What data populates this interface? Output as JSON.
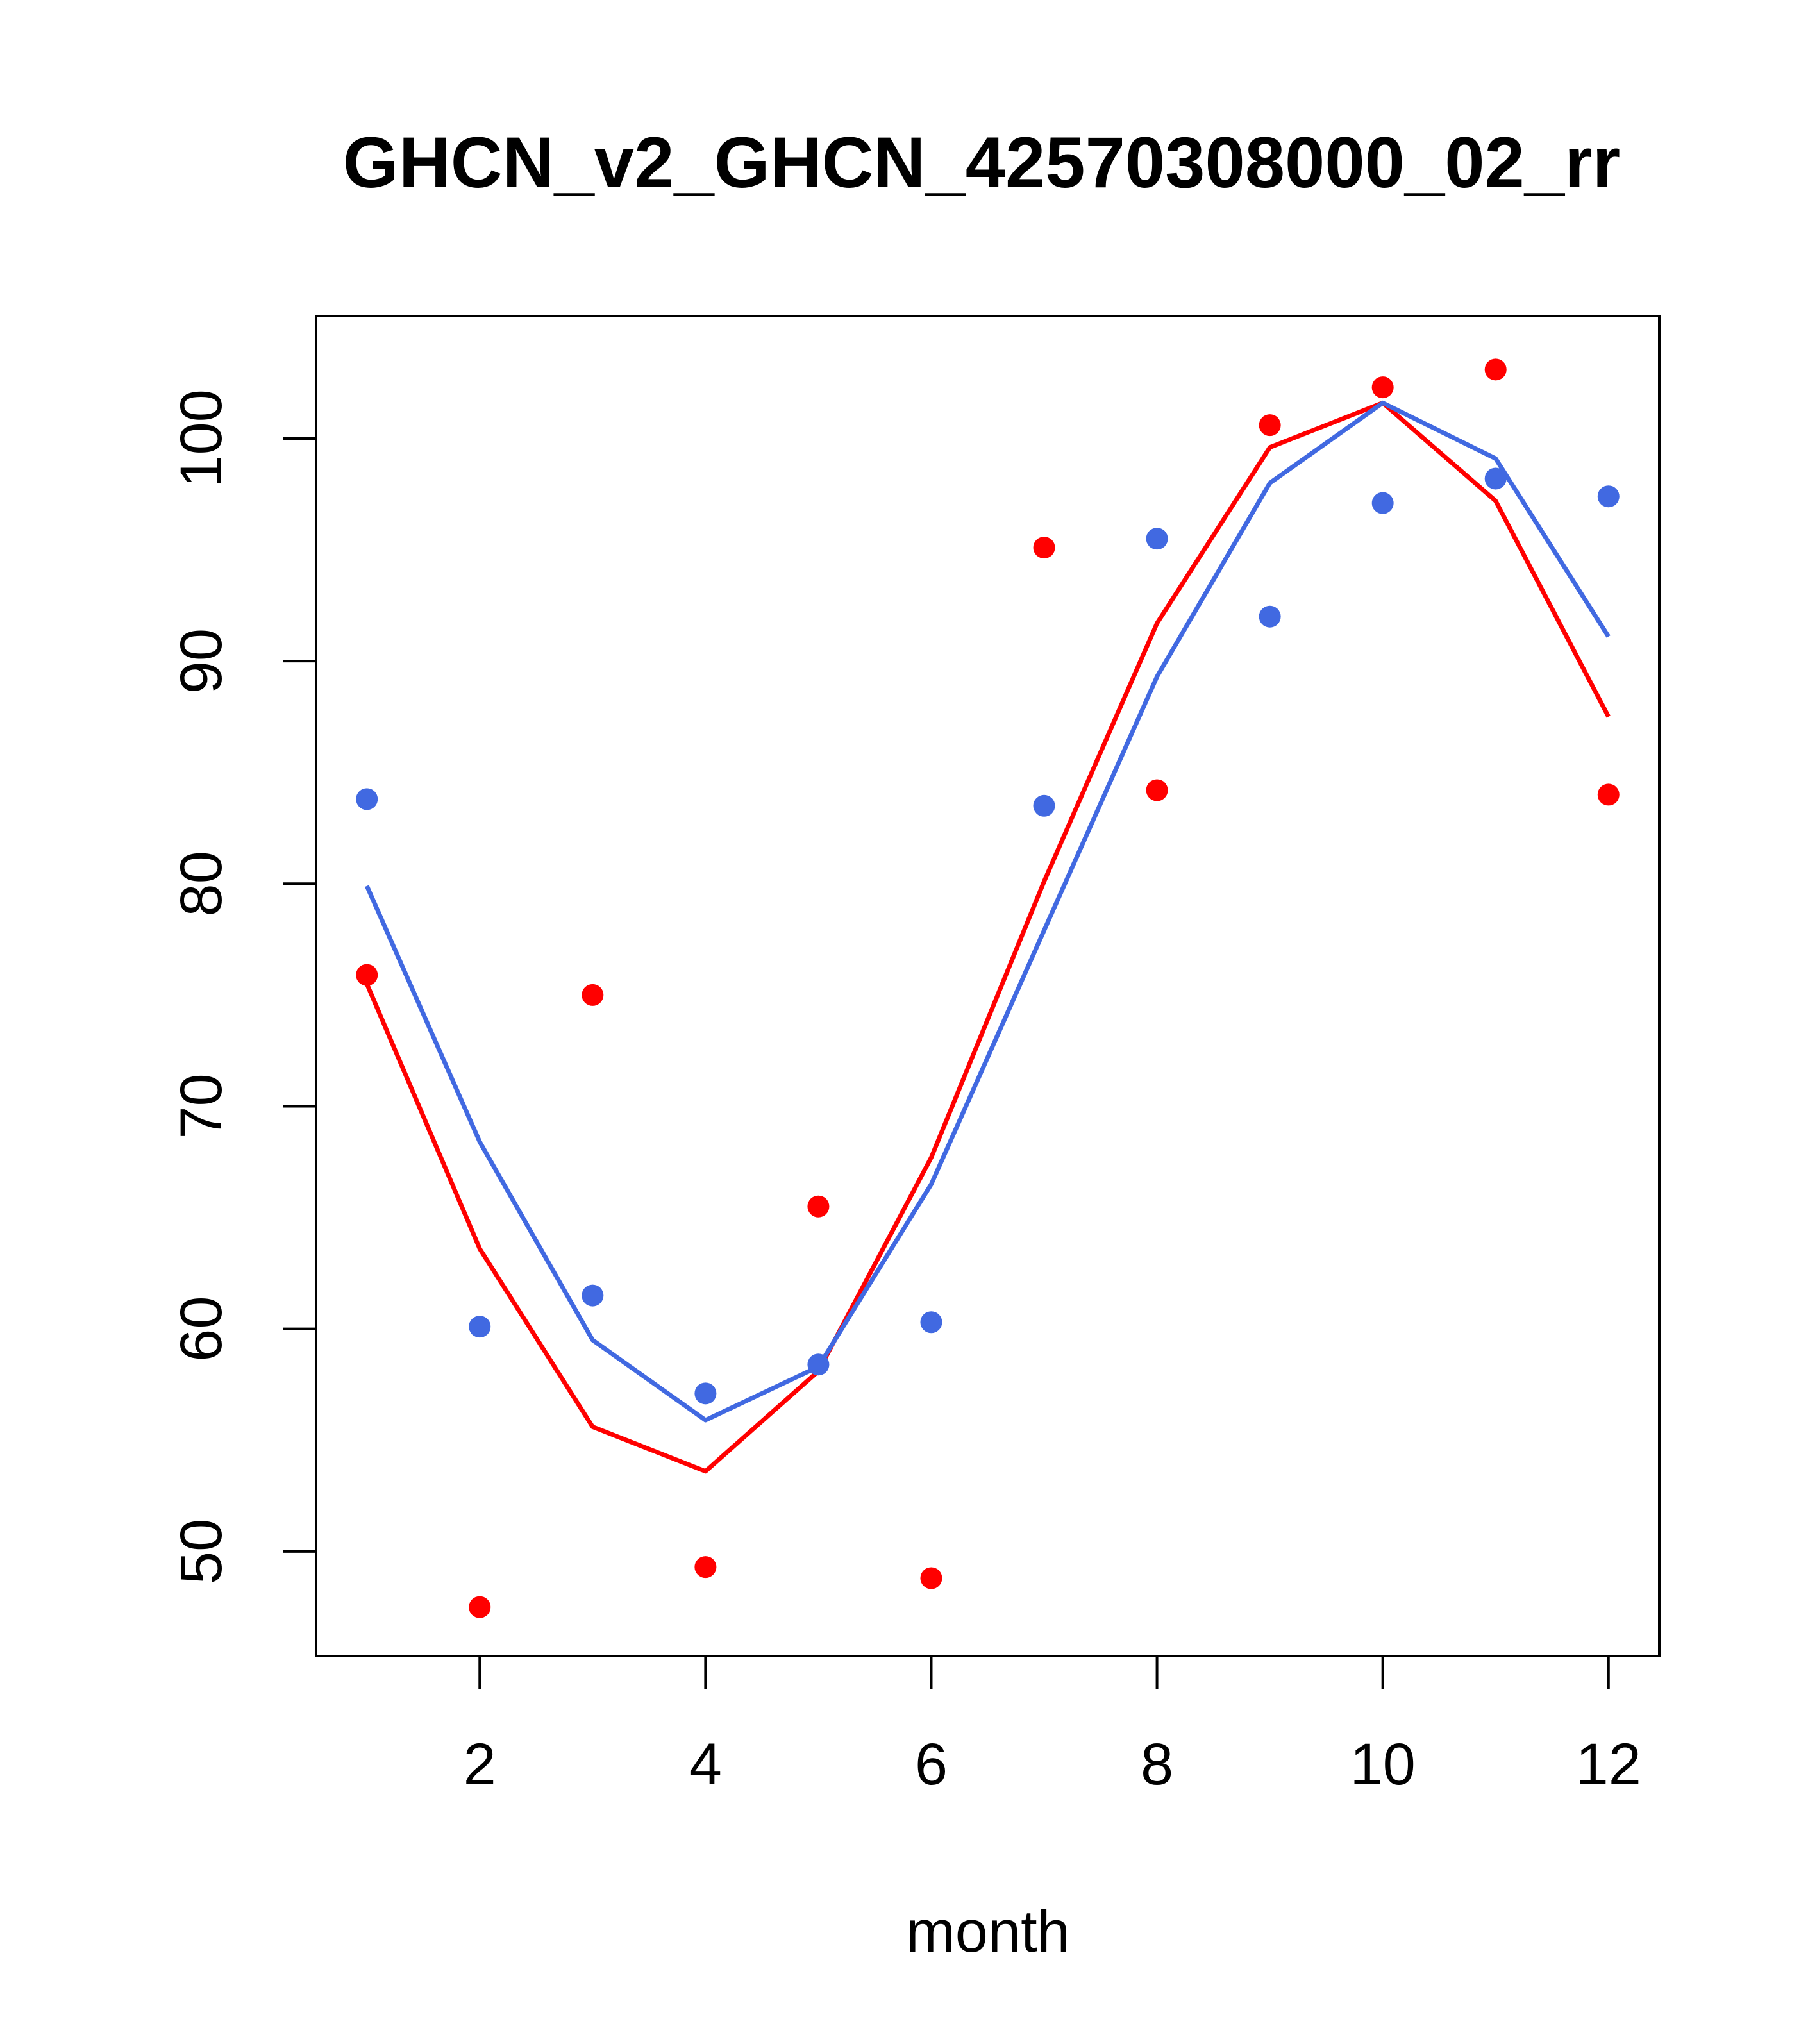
{
  "chart_data": {
    "type": "line",
    "title": "GHCN_v2_GHCN_42570308000_02_rr",
    "xlabel": "month",
    "ylabel": "",
    "xlim": [
      0.55,
      12.45
    ],
    "ylim": [
      45.3,
      105.5
    ],
    "x_ticks": [
      2,
      4,
      6,
      8,
      10,
      12
    ],
    "y_ticks": [
      50,
      60,
      70,
      80,
      90,
      100
    ],
    "grid": false,
    "series": [
      {
        "kind": "points",
        "color": "#ff0000",
        "x": [
          1,
          2,
          3,
          4,
          5,
          6,
          7,
          8,
          9,
          10,
          11,
          12
        ],
        "y": [
          75.9,
          47.5,
          75.0,
          49.3,
          65.5,
          48.8,
          95.1,
          84.2,
          100.6,
          102.3,
          103.1,
          84.0
        ]
      },
      {
        "kind": "points",
        "color": "#4169e1",
        "x": [
          1,
          2,
          3,
          4,
          5,
          6,
          7,
          8,
          9,
          10,
          11,
          12
        ],
        "y": [
          83.8,
          60.1,
          61.5,
          57.1,
          58.4,
          60.3,
          83.5,
          95.5,
          92.0,
          97.1,
          98.2,
          97.4
        ]
      },
      {
        "kind": "line",
        "color": "#ff0000",
        "x": [
          1,
          2,
          3,
          4,
          5,
          6,
          7,
          8,
          9,
          10,
          11,
          12
        ],
        "y": [
          75.5,
          63.6,
          55.6,
          53.6,
          58.1,
          67.7,
          80.1,
          91.7,
          99.6,
          101.6,
          97.2,
          87.5
        ]
      },
      {
        "kind": "line",
        "color": "#4169e1",
        "x": [
          1,
          2,
          3,
          4,
          5,
          6,
          7,
          8,
          9,
          10,
          11,
          12
        ],
        "y": [
          79.9,
          68.4,
          59.5,
          55.9,
          58.3,
          66.5,
          77.9,
          89.3,
          98.0,
          101.6,
          99.1,
          91.1
        ]
      }
    ]
  }
}
